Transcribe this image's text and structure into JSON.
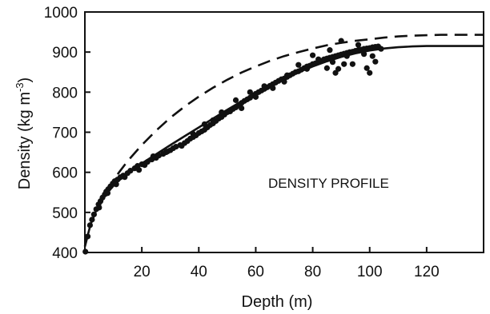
{
  "chart_data": {
    "type": "scatter",
    "title": "",
    "annotation": "DENSITY PROFILE",
    "xlabel": "Depth (m)",
    "ylabel_main": "Density (kg m",
    "ylabel_sup": "-3",
    "ylabel_close": ")",
    "xlim": [
      0,
      140
    ],
    "ylim": [
      400,
      1000
    ],
    "x_ticks": [
      20,
      40,
      60,
      80,
      100,
      120
    ],
    "x_tick_labels": [
      "20",
      "40",
      "60",
      "80",
      "100",
      "120"
    ],
    "y_ticks": [
      400,
      500,
      600,
      700,
      800,
      900,
      1000
    ],
    "y_tick_labels": [
      "400",
      "500",
      "600",
      "700",
      "800",
      "900",
      "1000"
    ],
    "grid": false,
    "series": [
      {
        "style": "scatter",
        "points": [
          [
            0.2,
            402
          ],
          [
            1,
            440
          ],
          [
            1.8,
            468
          ],
          [
            2.5,
            482
          ],
          [
            3.2,
            495
          ],
          [
            4,
            508
          ],
          [
            4.8,
            520
          ],
          [
            5.5,
            528
          ],
          [
            6.2,
            537
          ],
          [
            7,
            545
          ],
          [
            7.5,
            552
          ],
          [
            8.2,
            558
          ],
          [
            9,
            565
          ],
          [
            9.8,
            572
          ],
          [
            10.5,
            578
          ],
          [
            11.5,
            582
          ],
          [
            12.5,
            588
          ],
          [
            13.5,
            592
          ],
          [
            15,
            598
          ],
          [
            16,
            604
          ],
          [
            17.5,
            610
          ],
          [
            18.5,
            616
          ],
          [
            20,
            620
          ],
          [
            21,
            618
          ],
          [
            22,
            626
          ],
          [
            23.5,
            632
          ],
          [
            25,
            636
          ],
          [
            26,
            642
          ],
          [
            27.5,
            646
          ],
          [
            28.5,
            650
          ],
          [
            30,
            655
          ],
          [
            31,
            660
          ],
          [
            32,
            664
          ],
          [
            33.5,
            668
          ],
          [
            35,
            673
          ],
          [
            36,
            678
          ],
          [
            37,
            684
          ],
          [
            38,
            688
          ],
          [
            39,
            692
          ],
          [
            40,
            698
          ],
          [
            41,
            702
          ],
          [
            42,
            706
          ],
          [
            43,
            712
          ],
          [
            44,
            718
          ],
          [
            45,
            722
          ],
          [
            46,
            728
          ],
          [
            47,
            734
          ],
          [
            48,
            738
          ],
          [
            49,
            744
          ],
          [
            50,
            750
          ],
          [
            51,
            752
          ],
          [
            52,
            758
          ],
          [
            53,
            762
          ],
          [
            54,
            768
          ],
          [
            55,
            773
          ],
          [
            56,
            778
          ],
          [
            57,
            782
          ],
          [
            58,
            786
          ],
          [
            59,
            792
          ],
          [
            60,
            796
          ],
          [
            61,
            800
          ],
          [
            62,
            804
          ],
          [
            63,
            808
          ],
          [
            64,
            812
          ],
          [
            65,
            816
          ],
          [
            66,
            820
          ],
          [
            67,
            824
          ],
          [
            68,
            828
          ],
          [
            69,
            832
          ],
          [
            70,
            834
          ],
          [
            71,
            838
          ],
          [
            72,
            842
          ],
          [
            73,
            846
          ],
          [
            74,
            850
          ],
          [
            75,
            852
          ],
          [
            76,
            856
          ],
          [
            77,
            860
          ],
          [
            78,
            864
          ],
          [
            79,
            866
          ],
          [
            80,
            870
          ],
          [
            81,
            872
          ],
          [
            82,
            876
          ],
          [
            83,
            878
          ],
          [
            84,
            882
          ],
          [
            85,
            884
          ],
          [
            86,
            886
          ],
          [
            87,
            888
          ],
          [
            88,
            890
          ],
          [
            89,
            892
          ],
          [
            90,
            894
          ],
          [
            91,
            896
          ],
          [
            92,
            898
          ],
          [
            93,
            900
          ],
          [
            94,
            901
          ],
          [
            95,
            903
          ],
          [
            96,
            905
          ],
          [
            97,
            906
          ],
          [
            98,
            908
          ],
          [
            99,
            909
          ],
          [
            100,
            910
          ],
          [
            101,
            912
          ],
          [
            102,
            913
          ],
          [
            103,
            914
          ],
          [
            5,
            512
          ],
          [
            8,
            548
          ],
          [
            11,
            570
          ],
          [
            14,
            588
          ],
          [
            19,
            606
          ],
          [
            24,
            640
          ],
          [
            29,
            652
          ],
          [
            34,
            666
          ],
          [
            42,
            720
          ],
          [
            48,
            750
          ],
          [
            53,
            780
          ],
          [
            58,
            800
          ],
          [
            63,
            815
          ],
          [
            66,
            810
          ],
          [
            71,
            842
          ],
          [
            75,
            868
          ],
          [
            78,
            858
          ],
          [
            82,
            882
          ],
          [
            85,
            860
          ],
          [
            87,
            875
          ],
          [
            88,
            848
          ],
          [
            89,
            858
          ],
          [
            90,
            928
          ],
          [
            91,
            870
          ],
          [
            92,
            890
          ],
          [
            94,
            870
          ],
          [
            96,
            918
          ],
          [
            98,
            895
          ],
          [
            99,
            860
          ],
          [
            100,
            848
          ],
          [
            101,
            890
          ],
          [
            102,
            876
          ],
          [
            104,
            908
          ],
          [
            86,
            905
          ],
          [
            80,
            892
          ],
          [
            70,
            826
          ],
          [
            60,
            788
          ],
          [
            55,
            760
          ],
          [
            45,
            730
          ],
          [
            38,
            696
          ]
        ]
      },
      {
        "style": "solid",
        "points": [
          [
            0,
            415
          ],
          [
            2,
            470
          ],
          [
            4,
            505
          ],
          [
            6,
            530
          ],
          [
            8,
            550
          ],
          [
            10,
            566
          ],
          [
            12,
            580
          ],
          [
            15,
            598
          ],
          [
            20,
            622
          ],
          [
            25,
            645
          ],
          [
            30,
            668
          ],
          [
            35,
            690
          ],
          [
            40,
            712
          ],
          [
            45,
            734
          ],
          [
            50,
            756
          ],
          [
            55,
            777
          ],
          [
            60,
            797
          ],
          [
            65,
            816
          ],
          [
            70,
            834
          ],
          [
            75,
            850
          ],
          [
            80,
            864
          ],
          [
            85,
            877
          ],
          [
            90,
            888
          ],
          [
            95,
            897
          ],
          [
            100,
            904
          ],
          [
            105,
            909
          ],
          [
            110,
            912
          ],
          [
            115,
            914
          ],
          [
            120,
            915
          ],
          [
            125,
            915
          ],
          [
            130,
            915
          ],
          [
            140,
            915
          ]
        ]
      },
      {
        "style": "dashed",
        "points": [
          [
            0,
            415
          ],
          [
            2,
            470
          ],
          [
            4,
            505
          ],
          [
            6,
            533
          ],
          [
            8,
            557
          ],
          [
            10,
            580
          ],
          [
            12,
            600
          ],
          [
            15,
            628
          ],
          [
            20,
            668
          ],
          [
            25,
            704
          ],
          [
            30,
            736
          ],
          [
            35,
            764
          ],
          [
            40,
            789
          ],
          [
            45,
            811
          ],
          [
            50,
            831
          ],
          [
            55,
            849
          ],
          [
            60,
            864
          ],
          [
            65,
            878
          ],
          [
            70,
            890
          ],
          [
            75,
            900
          ],
          [
            80,
            909
          ],
          [
            85,
            917
          ],
          [
            90,
            923
          ],
          [
            95,
            928
          ],
          [
            100,
            932
          ],
          [
            105,
            936
          ],
          [
            110,
            939
          ],
          [
            115,
            941
          ],
          [
            120,
            942
          ],
          [
            125,
            943
          ],
          [
            130,
            943
          ],
          [
            140,
            943
          ]
        ]
      }
    ]
  }
}
